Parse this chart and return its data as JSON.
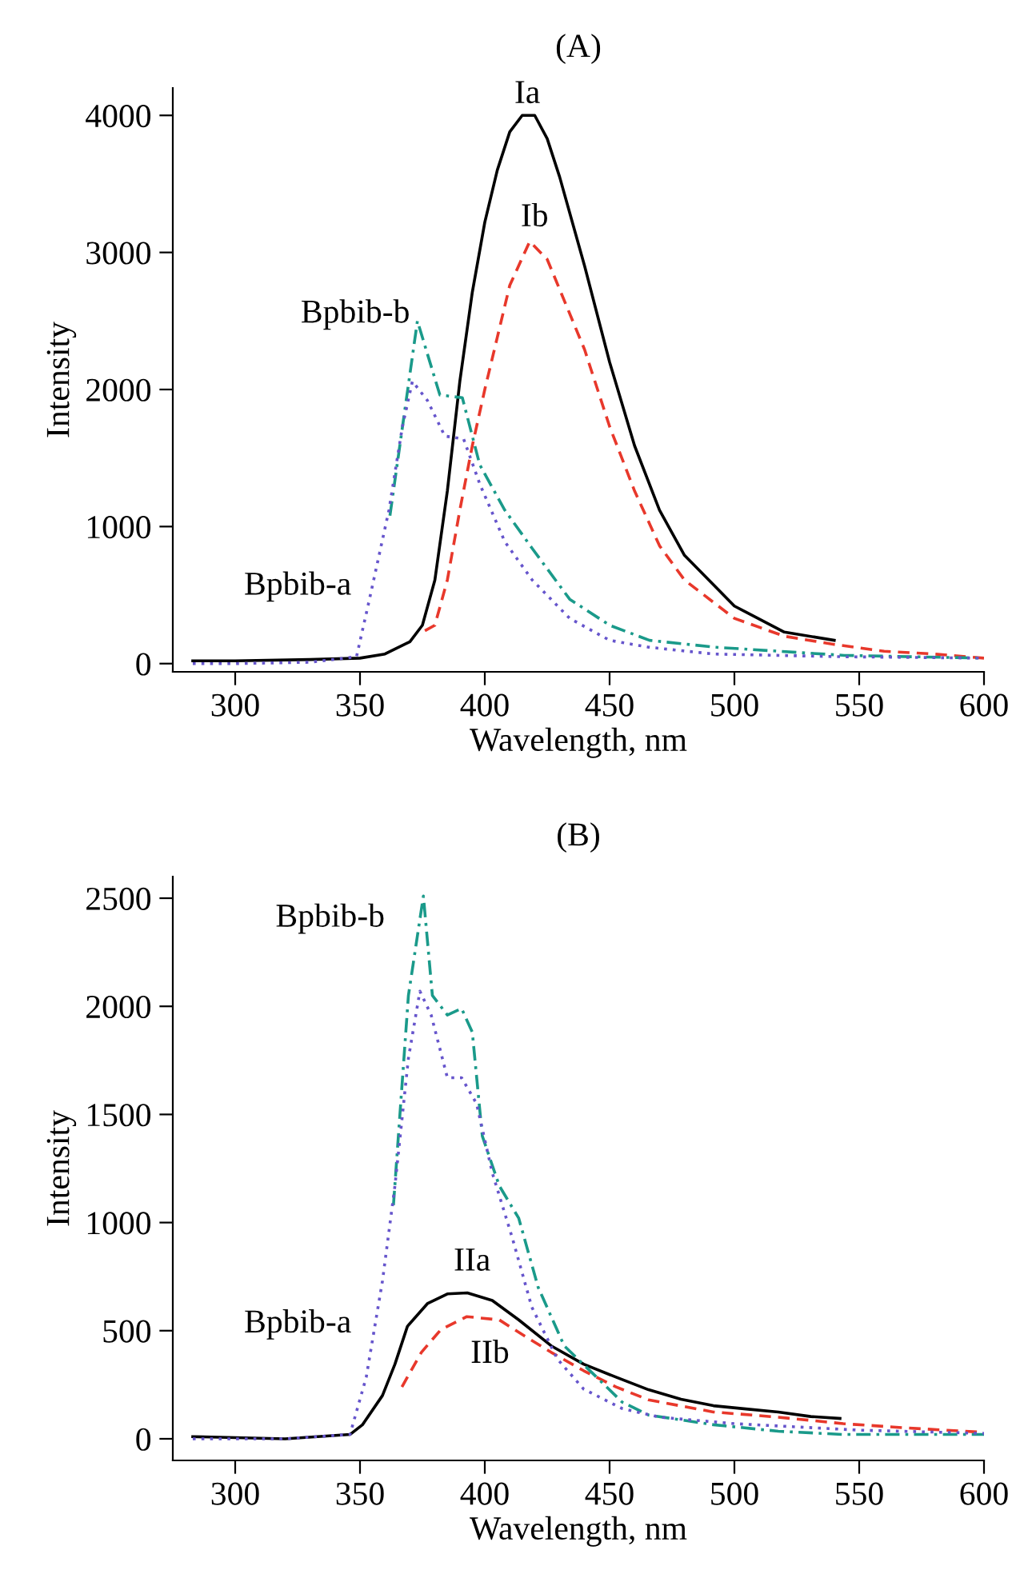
{
  "chart_data": [
    {
      "type": "line",
      "title": "(A)",
      "xlabel": "Wavelength, nm",
      "ylabel": "Intensity",
      "xlim": [
        275,
        600
      ],
      "ylim": [
        -60,
        4200
      ],
      "xticks": [
        300,
        350,
        400,
        450,
        500,
        550,
        600
      ],
      "yticks": [
        0,
        1000,
        2000,
        3000,
        4000
      ],
      "grid": false,
      "legend": false,
      "marker": "none",
      "series": [
        {
          "name": "Ia",
          "color": "#000000",
          "line_style": "solid",
          "x": [
            283,
            300,
            330,
            350,
            360,
            370,
            375,
            380,
            385,
            390,
            395,
            400,
            405,
            410,
            415,
            420,
            425,
            430,
            440,
            450,
            460,
            470,
            480,
            500,
            520,
            540
          ],
          "values": [
            20,
            20,
            30,
            40,
            70,
            160,
            280,
            610,
            1260,
            2060,
            2710,
            3220,
            3600,
            3880,
            4000,
            4000,
            3830,
            3550,
            2900,
            2200,
            1590,
            1120,
            790,
            420,
            230,
            170
          ]
        },
        {
          "name": "Ib",
          "color": "#e8382b",
          "line_style": "dashed",
          "x": [
            376,
            380,
            385,
            390,
            395,
            400,
            405,
            410,
            418,
            425,
            430,
            440,
            450,
            460,
            470,
            480,
            500,
            520,
            540,
            560,
            580,
            600
          ],
          "values": [
            240,
            280,
            610,
            1120,
            1590,
            2000,
            2380,
            2760,
            3080,
            2950,
            2730,
            2290,
            1730,
            1260,
            860,
            610,
            330,
            200,
            140,
            90,
            70,
            40
          ]
        },
        {
          "name": "Bpbib-b",
          "color": "#1a9a8a",
          "line_style": "dashdot",
          "x": [
            362,
            373,
            382,
            391,
            398,
            408,
            419,
            434,
            450,
            466,
            492,
            518,
            544,
            600
          ],
          "values": [
            1080,
            2500,
            1960,
            1940,
            1450,
            1120,
            840,
            470,
            280,
            170,
            120,
            90,
            60,
            40
          ]
        },
        {
          "name": "Bpbib-a",
          "color": "#6655cc",
          "line_style": "dotted",
          "x": [
            283,
            300,
            330,
            348.6,
            353.8,
            361.6,
            367,
            371,
            377,
            384,
            391.5,
            398,
            408,
            419,
            434,
            450,
            465.6,
            491.6,
            543.6,
            600
          ],
          "values": [
            0,
            0,
            10,
            50,
            470,
            1120,
            1730,
            2060,
            1920,
            1660,
            1640,
            1310,
            890,
            610,
            330,
            170,
            120,
            70,
            50,
            40
          ]
        }
      ]
    },
    {
      "type": "line",
      "title": "(B)",
      "xlabel": "Wavelength, nm",
      "ylabel": "Intensity",
      "xlim": [
        275,
        600
      ],
      "ylim": [
        -100,
        2600
      ],
      "xticks": [
        300,
        350,
        400,
        450,
        500,
        550,
        600
      ],
      "yticks": [
        0,
        500,
        1000,
        1500,
        2000,
        2500
      ],
      "grid": false,
      "legend": false,
      "marker": "none",
      "series": [
        {
          "name": "IIa",
          "color": "#000000",
          "line_style": "solid",
          "x": [
            283,
            320,
            346,
            351,
            359,
            364,
            369,
            377,
            385,
            393,
            403,
            413.6,
            426.6,
            439.6,
            452.6,
            465.6,
            478.6,
            491.6,
            504.6,
            517.6,
            530.6,
            542.3
          ],
          "values": [
            10,
            0,
            20,
            65,
            200,
            345,
            520,
            625,
            670,
            675,
            640,
            550,
            430,
            345,
            285,
            227,
            183,
            153,
            138,
            124,
            103,
            94
          ]
        },
        {
          "name": "IIb",
          "color": "#e8382b",
          "line_style": "dashed",
          "x": [
            366.8,
            374.6,
            382.4,
            392.8,
            405.8,
            416,
            426.6,
            439.6,
            452.6,
            465.6,
            491.6,
            517.6,
            543.6,
            569.5,
            600
          ],
          "values": [
            240,
            400,
            505,
            565,
            550,
            475,
            400,
            315,
            240,
            180,
            124,
            100,
            70,
            50,
            30
          ]
        },
        {
          "name": "Bpbib-b",
          "color": "#1a9a8a",
          "line_style": "dashdot",
          "x": [
            363.4,
            369.4,
            375.4,
            379,
            385,
            390.7,
            395,
            399,
            405.8,
            413.6,
            421.4,
            431.8,
            444.8,
            455,
            465.6,
            491.6,
            517.6,
            543.6,
            600
          ],
          "values": [
            1080,
            2050,
            2510,
            2050,
            1960,
            1990,
            1880,
            1400,
            1170,
            1020,
            700,
            430,
            285,
            170,
            110,
            65,
            35,
            20,
            20
          ]
        },
        {
          "name": "Bpbib-a",
          "color": "#6655cc",
          "line_style": "dotted",
          "x": [
            283,
            320,
            346,
            352.5,
            359,
            364,
            369.4,
            374,
            378.5,
            385,
            390.7,
            396.7,
            403,
            411,
            418.8,
            429,
            439.6,
            455,
            470,
            500,
            550,
            600
          ],
          "values": [
            0,
            0,
            20,
            285,
            730,
            1170,
            1760,
            2070,
            1960,
            1670,
            1670,
            1550,
            1230,
            930,
            610,
            370,
            230,
            140,
            100,
            70,
            40,
            25
          ]
        }
      ]
    }
  ]
}
